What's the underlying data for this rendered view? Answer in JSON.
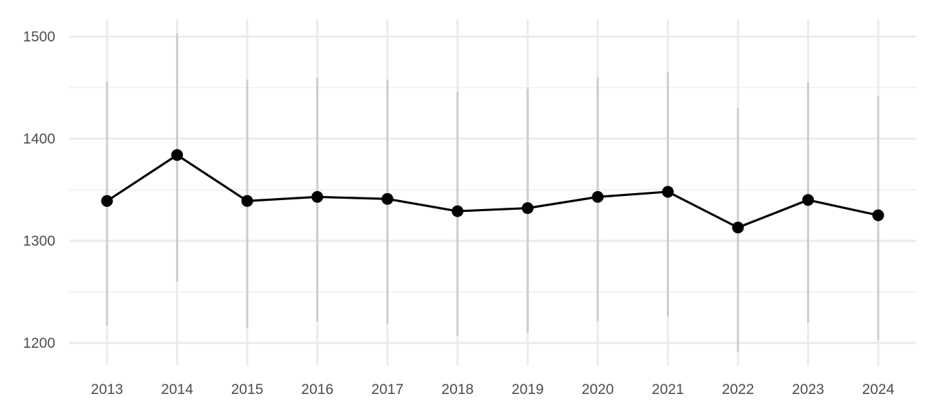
{
  "chart_data": {
    "type": "line",
    "title": "",
    "xlabel": "",
    "ylabel": "",
    "categories": [
      "2013",
      "2014",
      "2015",
      "2016",
      "2017",
      "2018",
      "2019",
      "2020",
      "2021",
      "2022",
      "2023",
      "2024"
    ],
    "series": [
      {
        "values": [
          1339,
          1384,
          1339,
          1343,
          1341,
          1329,
          1332,
          1343,
          1348,
          1313,
          1340,
          1325
        ],
        "lower": [
          1217,
          1260,
          1215,
          1221,
          1219,
          1207,
          1210,
          1221,
          1226,
          1191,
          1220,
          1203
        ],
        "upper": [
          1456,
          1503,
          1458,
          1460,
          1458,
          1446,
          1449,
          1460,
          1465,
          1430,
          1455,
          1442
        ]
      }
    ],
    "ylim": [
      1178,
      1517
    ],
    "yticks": [
      1200,
      1300,
      1400,
      1500
    ],
    "grid": true,
    "legend": "none",
    "colors": {
      "line": "#000000",
      "point": "#000000",
      "errorbar": "#cccccc",
      "grid_major": "#ebebeb",
      "grid_minor": "#f2f2f2",
      "tick_text": "#4d4d4d"
    }
  }
}
